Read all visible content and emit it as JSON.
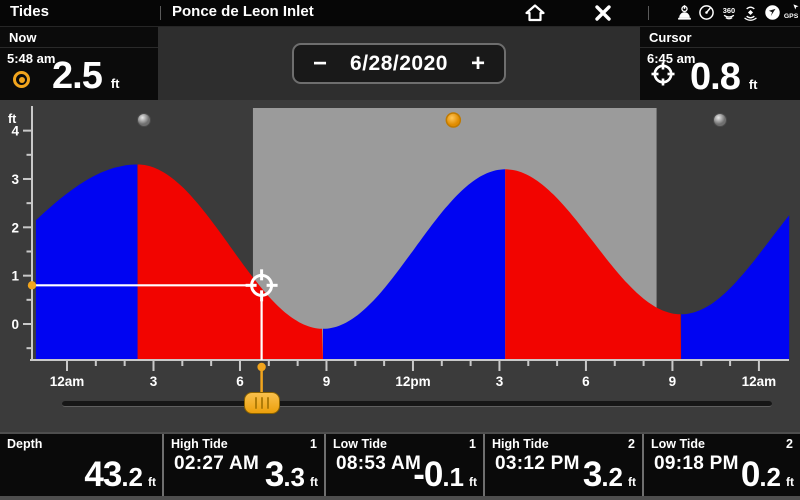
{
  "header": {
    "app_title": "Tides",
    "station": "Ponce de Leon Inlet",
    "status_icons": [
      "power-transducer-icon",
      "radar-icon",
      "360-imaging-icon",
      "sonar-icon",
      "heading-sensor-icon",
      "gps-icon"
    ]
  },
  "now_panel": {
    "label": "Now",
    "time": "5:48 am",
    "value": "2.5",
    "unit": "ft"
  },
  "date_selector": {
    "minus": "−",
    "date": "6/28/2020",
    "plus": "+"
  },
  "cursor_panel": {
    "label": "Cursor",
    "time": "6:45 am",
    "value": "0.8",
    "unit": "ft"
  },
  "chart_data": {
    "type": "area",
    "title": "Tide height for 6/28/2020",
    "ylabel": "ft",
    "ylim": [
      -0.75,
      4.45
    ],
    "x_hours_range": [
      -1.08,
      25.05
    ],
    "x_major_tick_hours": [
      0,
      3,
      6,
      9,
      12,
      15,
      18,
      21,
      24
    ],
    "x_tick_labels": [
      "12am",
      "3",
      "6",
      "9",
      "12pm",
      "3",
      "6",
      "9",
      "12am"
    ],
    "y_major_ticks": [
      0,
      1,
      2,
      3,
      4
    ],
    "grid": false,
    "legend": null,
    "rising_color": "#0004f2",
    "falling_color": "#f20400",
    "day_band_color": "#9b9b9b",
    "night_bg_color": "#3b3b3b",
    "daylight_band_hours": [
      6.45,
      20.45
    ],
    "sun_marker_hour": 13.4,
    "moon_marker_hours": [
      2.67,
      22.65
    ],
    "curve_extremes": [
      {
        "t": -6.0,
        "ft": 0.2,
        "type": "low",
        "visible": false
      },
      {
        "t": 2.45,
        "ft": 3.3,
        "type": "high",
        "visible": true
      },
      {
        "t": 8.88,
        "ft": -0.1,
        "type": "low",
        "visible": true
      },
      {
        "t": 15.2,
        "ft": 3.2,
        "type": "high",
        "visible": true
      },
      {
        "t": 21.3,
        "ft": 0.2,
        "type": "low",
        "visible": true
      },
      {
        "t": 27.5,
        "ft": 3.3,
        "type": "high",
        "visible": false
      }
    ],
    "cursor": {
      "hour": 6.75,
      "time_label": "6:45 am",
      "ft": 0.8
    },
    "accent_orange": "#f2a51d",
    "cursor_crosshair_color": "#ffffff"
  },
  "slider": {
    "hours_span": 24,
    "position_hour": 6.75
  },
  "bottom_bar": {
    "cells": [
      {
        "label": "Depth",
        "index": "",
        "time": "",
        "value": "43.2",
        "unit": "ft"
      },
      {
        "label": "High Tide",
        "index": "1",
        "time": "02:27 AM",
        "value": "3.3",
        "unit": "ft"
      },
      {
        "label": "Low Tide",
        "index": "1",
        "time": "08:53 AM",
        "value": "-0.1",
        "unit": "ft"
      },
      {
        "label": "High Tide",
        "index": "2",
        "time": "03:12 PM",
        "value": "3.2",
        "unit": "ft"
      },
      {
        "label": "Low Tide",
        "index": "2",
        "time": "09:18 PM",
        "value": "0.2",
        "unit": "ft"
      }
    ]
  }
}
